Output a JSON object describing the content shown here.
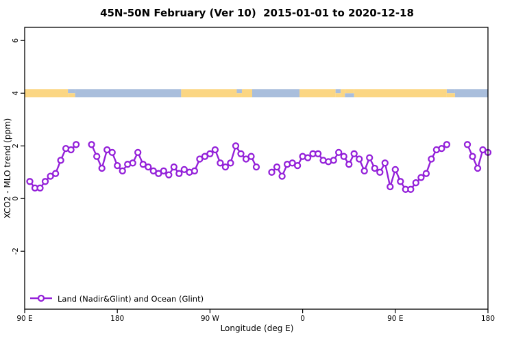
{
  "header": {
    "title": "45N-50N February (Ver 10)  2015-01-01 to 2020-12-18"
  },
  "colors": {
    "series_purple": "#9421D9",
    "marker_fill": "#ffffff",
    "land_band": "#FBD683",
    "ocean_band": "#A9BEDC",
    "axis": "#000000"
  },
  "chart_data": {
    "type": "line",
    "title": "45N-50N February (Ver 10)  2015-01-01 to 2020-12-18",
    "xlabel": "Longitude (deg E)",
    "ylabel": "XCO2 - MLO trend (ppm)",
    "xlim": [
      90,
      540
    ],
    "ylim": [
      -4.2,
      6.5
    ],
    "grid": false,
    "x_ticks": [
      {
        "v": 90,
        "label": "90 E"
      },
      {
        "v": 180,
        "label": "180"
      },
      {
        "v": 270,
        "label": "90 W"
      },
      {
        "v": 360,
        "label": "0"
      },
      {
        "v": 450,
        "label": "90 E"
      },
      {
        "v": 540,
        "label": "180"
      }
    ],
    "y_ticks": [
      {
        "v": 6,
        "label": "6"
      },
      {
        "v": 4,
        "label": "4"
      },
      {
        "v": 2,
        "label": "2"
      },
      {
        "v": 0,
        "label": "0"
      },
      {
        "v": -2,
        "label": "-2"
      }
    ],
    "legend": {
      "position": "bottom-left",
      "entries": [
        {
          "label": "Land (Nadir&Glint) and Ocean (Glint)",
          "color": "#9421D9",
          "marker": "open-circle"
        }
      ]
    },
    "surface_band": {
      "value": 4,
      "thickness_ppm": 0.3,
      "land_color": "#FBD683",
      "ocean_color": "#A9BEDC",
      "segments": [
        {
          "from": 90,
          "to": 132,
          "surface": "land",
          "part": "full"
        },
        {
          "from": 132,
          "to": 139,
          "surface": "ocean",
          "part": "top"
        },
        {
          "from": 132,
          "to": 139,
          "surface": "land",
          "part": "bottom"
        },
        {
          "from": 139,
          "to": 242,
          "surface": "ocean",
          "part": "full"
        },
        {
          "from": 242,
          "to": 296,
          "surface": "land",
          "part": "full"
        },
        {
          "from": 296,
          "to": 301,
          "surface": "ocean",
          "part": "top"
        },
        {
          "from": 296,
          "to": 301,
          "surface": "land",
          "part": "bottom"
        },
        {
          "from": 301,
          "to": 311,
          "surface": "land",
          "part": "full"
        },
        {
          "from": 311,
          "to": 357,
          "surface": "ocean",
          "part": "full"
        },
        {
          "from": 357,
          "to": 392,
          "surface": "land",
          "part": "full"
        },
        {
          "from": 392,
          "to": 397,
          "surface": "ocean",
          "part": "top"
        },
        {
          "from": 392,
          "to": 397,
          "surface": "land",
          "part": "bottom"
        },
        {
          "from": 397,
          "to": 401,
          "surface": "land",
          "part": "full"
        },
        {
          "from": 401,
          "to": 410,
          "surface": "ocean",
          "part": "bottom"
        },
        {
          "from": 401,
          "to": 410,
          "surface": "land",
          "part": "top"
        },
        {
          "from": 410,
          "to": 500,
          "surface": "land",
          "part": "full"
        },
        {
          "from": 500,
          "to": 508,
          "surface": "ocean",
          "part": "top"
        },
        {
          "from": 500,
          "to": 508,
          "surface": "land",
          "part": "bottom"
        },
        {
          "from": 508,
          "to": 540,
          "surface": "ocean",
          "part": "full"
        }
      ]
    },
    "series": [
      {
        "name": "Land (Nadir&Glint) and Ocean (Glint)",
        "color": "#9421D9",
        "x": [
          95,
          100,
          105,
          110,
          115,
          120,
          125,
          130,
          135,
          140,
          145,
          150,
          155,
          160,
          165,
          170,
          175,
          180,
          185,
          190,
          195,
          200,
          205,
          210,
          215,
          220,
          225,
          230,
          235,
          240,
          245,
          250,
          255,
          260,
          265,
          270,
          275,
          280,
          285,
          290,
          295,
          300,
          305,
          310,
          315,
          320,
          325,
          330,
          335,
          340,
          345,
          350,
          355,
          360,
          365,
          370,
          375,
          380,
          385,
          390,
          395,
          400,
          405,
          410,
          415,
          420,
          425,
          430,
          435,
          440,
          445,
          450,
          455,
          460,
          465,
          470,
          475,
          480,
          485,
          490,
          495,
          500,
          505,
          510,
          515,
          520,
          525,
          530,
          535,
          540
        ],
        "y": [
          0.65,
          0.4,
          0.4,
          0.65,
          0.85,
          0.95,
          1.45,
          1.9,
          1.85,
          2.05,
          null,
          null,
          2.05,
          1.6,
          1.15,
          1.85,
          1.75,
          1.25,
          1.05,
          1.3,
          1.35,
          1.75,
          1.3,
          1.2,
          1.05,
          0.95,
          1.05,
          0.9,
          1.2,
          0.95,
          1.1,
          1.0,
          1.05,
          1.5,
          1.6,
          1.7,
          1.85,
          1.35,
          1.2,
          1.35,
          2.0,
          1.7,
          1.5,
          1.6,
          1.2,
          null,
          null,
          1.0,
          1.2,
          0.85,
          1.3,
          1.35,
          1.25,
          1.6,
          1.55,
          1.7,
          1.7,
          1.45,
          1.4,
          1.45,
          1.75,
          1.6,
          1.3,
          1.7,
          1.5,
          1.05,
          1.55,
          1.15,
          1.0,
          1.35,
          0.45,
          1.1,
          0.65,
          0.35,
          0.35,
          0.6,
          0.8,
          0.95,
          1.5,
          1.85,
          1.9,
          2.05,
          null,
          null,
          null,
          2.05,
          1.6,
          1.15,
          1.85,
          1.75
        ]
      }
    ]
  }
}
